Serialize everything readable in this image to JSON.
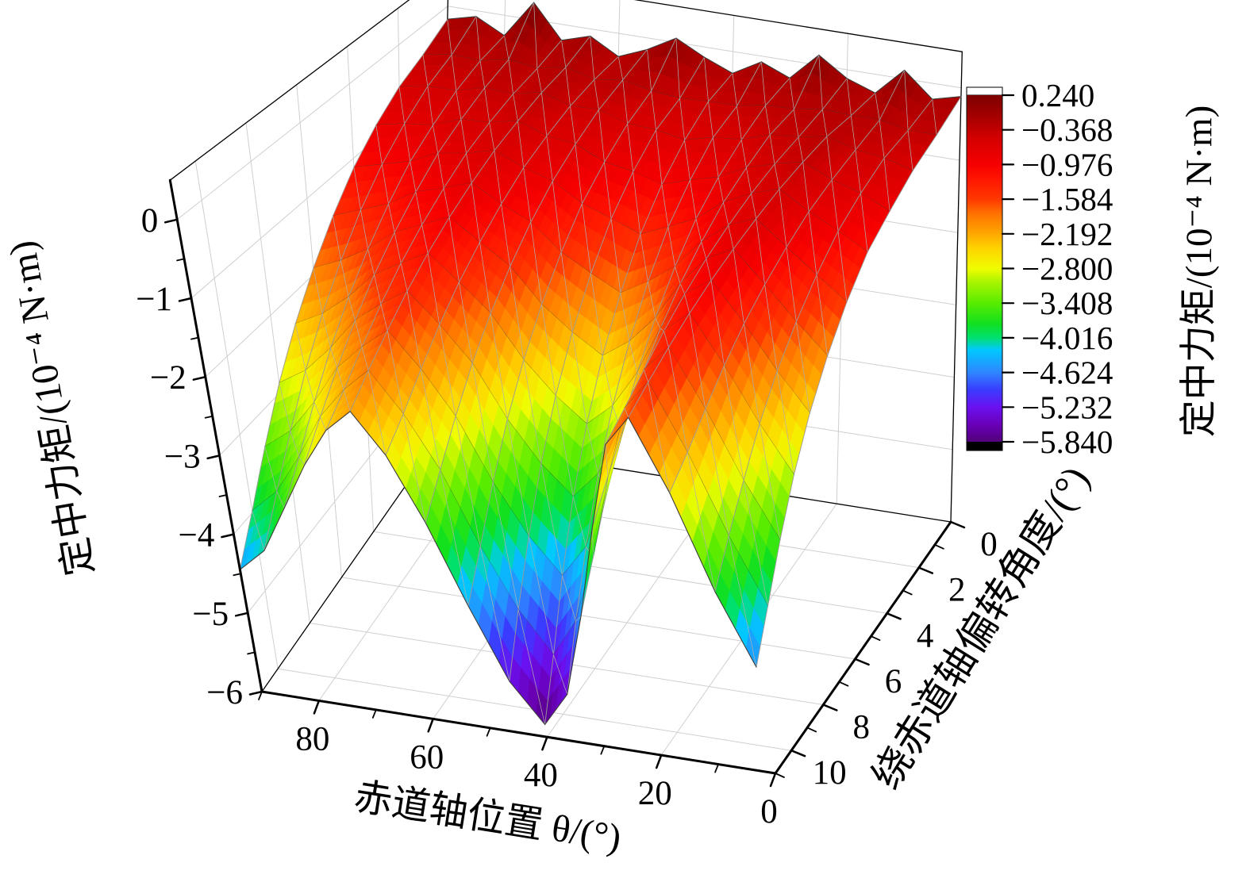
{
  "figure": {
    "background": "#ffffff",
    "description": "3D surface plot of centering torque versus equatorial-axis position and deflection angle"
  },
  "chart_data": {
    "type": "surface",
    "x_axis": {
      "label": "赤道轴位置 θ/(°)",
      "ticks": [
        80,
        60,
        40,
        20,
        0
      ],
      "minor_ticks": [
        90,
        70,
        50,
        30,
        10
      ],
      "range": [
        0,
        90
      ],
      "direction": "reversed"
    },
    "y_axis": {
      "label": "绕赤道轴偏转角度/(°)",
      "ticks": [
        0,
        2,
        4,
        6,
        8,
        10
      ],
      "minor_ticks": [
        1,
        3,
        5,
        7,
        9,
        11
      ],
      "range": [
        0,
        11
      ]
    },
    "z_axis": {
      "label": "定中力矩/(10⁻⁴ N·m)",
      "ticks": [
        0,
        -1,
        -2,
        -3,
        -4,
        -5,
        -6
      ],
      "tick_labels": [
        "0",
        "−1",
        "−2",
        "−3",
        "−4",
        "−5",
        "−6"
      ],
      "minor_ticks": [
        -0.5,
        -1.5,
        -2.5,
        -3.5,
        -4.5,
        -5.5
      ],
      "range": [
        -6,
        0.5
      ]
    },
    "colorbar": {
      "label": "定中力矩/(10⁻⁴ N·m)",
      "tick_values": [
        0.24,
        -0.368,
        -0.976,
        -1.584,
        -2.192,
        -2.8,
        -3.408,
        -4.016,
        -4.624,
        -5.232,
        -5.84
      ],
      "tick_labels": [
        "0.240",
        "−0.368",
        "−0.976",
        "−1.584",
        "−2.192",
        "−2.800",
        "−3.408",
        "−4.016",
        "−4.624",
        "−5.232",
        "−5.840"
      ],
      "vmin": -5.84,
      "vmax": 0.24,
      "over_color": "#ffffff",
      "under_color": "#000000"
    },
    "colormap_stops": [
      [
        0.0,
        "#52007a"
      ],
      [
        0.05,
        "#6a00b8"
      ],
      [
        0.1,
        "#6a10f0"
      ],
      [
        0.15,
        "#3a3cff"
      ],
      [
        0.2,
        "#2e86ff"
      ],
      [
        0.265,
        "#00c8ff"
      ],
      [
        0.3,
        "#00e070"
      ],
      [
        0.34,
        "#10e020"
      ],
      [
        0.4,
        "#58ec00"
      ],
      [
        0.46,
        "#a8f400"
      ],
      [
        0.5,
        "#f0fc00"
      ],
      [
        0.56,
        "#ffd200"
      ],
      [
        0.6,
        "#ffa800"
      ],
      [
        0.66,
        "#ff7000"
      ],
      [
        0.7,
        "#ff3800"
      ],
      [
        0.76,
        "#ff1400"
      ],
      [
        0.8,
        "#f60000"
      ],
      [
        0.88,
        "#d20000"
      ],
      [
        0.9,
        "#c00000"
      ],
      [
        1.0,
        "#7c0000"
      ]
    ],
    "surface": {
      "theta_deg": [
        90,
        85,
        80,
        75,
        70,
        65,
        60,
        55,
        50,
        45,
        40,
        35,
        30,
        25,
        20,
        15,
        10,
        5,
        0
      ],
      "deflection_deg": [
        0,
        1,
        2,
        3,
        4,
        5,
        6,
        7,
        8,
        9,
        10,
        11
      ],
      "z_matrix": [
        [
          -0.18,
          -0.08,
          -0.28,
          0.24,
          -0.22,
          -0.1,
          -0.32,
          -0.16,
          0.06,
          -0.14,
          -0.3,
          -0.08,
          -0.24,
          0.14,
          -0.12,
          -0.26,
          0.12,
          -0.22,
          -0.12
        ],
        [
          -0.4,
          -0.34,
          -0.36,
          -0.28,
          -0.34,
          -0.26,
          -0.37,
          -0.31,
          -0.4,
          -0.44,
          -0.42,
          -0.42,
          -0.35,
          -0.34,
          -0.28,
          -0.3,
          -0.3,
          -0.38,
          -0.38
        ],
        [
          -0.57,
          -0.5,
          -0.5,
          -0.4,
          -0.42,
          -0.34,
          -0.46,
          -0.45,
          -0.58,
          -0.6,
          -0.68,
          -0.58,
          -0.55,
          -0.42,
          -0.39,
          -0.32,
          -0.44,
          -0.49,
          -0.6
        ],
        [
          -0.82,
          -0.74,
          -0.7,
          -0.56,
          -0.54,
          -0.46,
          -0.6,
          -0.65,
          -0.83,
          -0.9,
          -1.01,
          -0.89,
          -0.79,
          -0.6,
          -0.49,
          -0.4,
          -0.58,
          -0.7,
          -0.88
        ],
        [
          -1.12,
          -1.02,
          -0.92,
          -0.75,
          -0.69,
          -0.59,
          -0.76,
          -0.88,
          -1.12,
          -1.26,
          -1.41,
          -1.25,
          -1.08,
          -0.8,
          -0.62,
          -0.5,
          -0.74,
          -0.94,
          -1.16
        ],
        [
          -1.5,
          -1.36,
          -1.22,
          -1.0,
          -0.89,
          -0.76,
          -0.98,
          -1.16,
          -1.5,
          -1.72,
          -1.92,
          -1.71,
          -1.45,
          -1.06,
          -0.78,
          -0.63,
          -0.95,
          -1.26,
          -1.56
        ],
        [
          -1.92,
          -1.76,
          -1.55,
          -1.27,
          -1.11,
          -0.95,
          -1.22,
          -1.48,
          -1.92,
          -2.23,
          -2.48,
          -2.23,
          -1.86,
          -1.35,
          -0.96,
          -0.77,
          -1.18,
          -1.61,
          -2.0
        ],
        [
          -2.38,
          -2.19,
          -1.91,
          -1.56,
          -1.35,
          -1.16,
          -1.48,
          -1.83,
          -2.38,
          -2.79,
          -3.1,
          -2.8,
          -2.31,
          -1.67,
          -1.16,
          -0.92,
          -1.43,
          -1.99,
          -2.48
        ],
        [
          -2.88,
          -2.66,
          -2.31,
          -1.89,
          -1.62,
          -1.39,
          -1.77,
          -2.21,
          -2.88,
          -3.4,
          -3.77,
          -3.41,
          -2.8,
          -2.02,
          -1.38,
          -1.09,
          -1.71,
          -2.41,
          -3.01
        ],
        [
          -3.43,
          -3.17,
          -2.74,
          -2.24,
          -1.91,
          -1.64,
          -2.08,
          -2.63,
          -3.42,
          -4.06,
          -4.51,
          -4.08,
          -3.34,
          -2.4,
          -1.62,
          -1.27,
          -2.01,
          -2.87,
          -3.58
        ],
        [
          -3.98,
          -3.67,
          -3.17,
          -2.6,
          -2.2,
          -1.89,
          -2.39,
          -3.05,
          -3.97,
          -4.72,
          -5.24,
          -4.75,
          -3.87,
          -2.78,
          -1.85,
          -1.46,
          -2.3,
          -3.31,
          -4.15
        ],
        [
          -4.45,
          -4.15,
          -3.55,
          -2.95,
          -2.45,
          -2.15,
          -2.65,
          -3.45,
          -4.45,
          -5.35,
          -5.84,
          -5.4,
          -4.35,
          -3.15,
          -2.05,
          -1.65,
          -2.55,
          -3.75,
          -4.65
        ]
      ]
    }
  }
}
